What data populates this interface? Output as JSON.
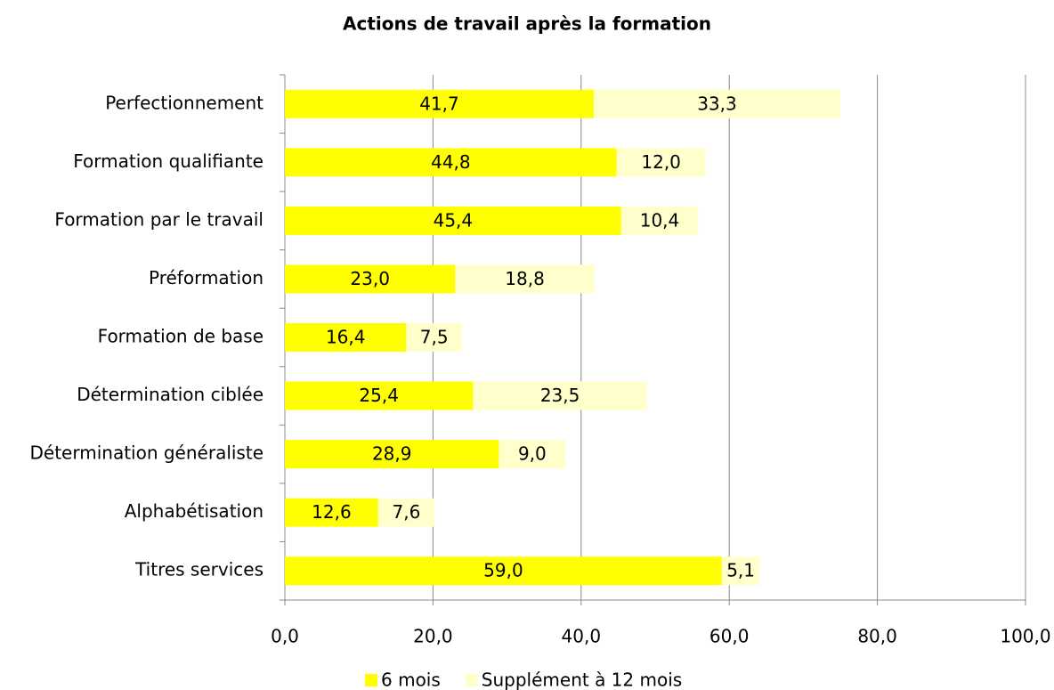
{
  "chart_data": {
    "type": "barh_stacked",
    "title": "Actions de travail après la formation",
    "categories": [
      "Perfectionnement",
      "Formation qualifiante",
      "Formation par le travail",
      "Préformation",
      "Formation de base",
      "Détermination ciblée",
      "Détermination généraliste",
      "Alphabétisation",
      "Titres services"
    ],
    "series": [
      {
        "name": "6 mois",
        "color": "#ffff00",
        "values": [
          41.7,
          44.8,
          45.4,
          23.0,
          16.4,
          25.4,
          28.9,
          12.6,
          59.0
        ],
        "value_labels": [
          "41,7",
          "44,8",
          "45,4",
          "23,0",
          "16,4",
          "25,4",
          "28,9",
          "12,6",
          "59,0"
        ]
      },
      {
        "name": "Supplément à 12 mois",
        "color": "#ffffcc",
        "values": [
          33.3,
          12.0,
          10.4,
          18.8,
          7.5,
          23.5,
          9.0,
          7.6,
          5.1
        ],
        "value_labels": [
          "33,3",
          "12,0",
          "10,4",
          "18,8",
          "7,5",
          "23,5",
          "9,0",
          "7,6",
          "5,1"
        ]
      }
    ],
    "xlim": [
      0,
      100
    ],
    "xticks": [
      {
        "value": 0,
        "label": "0,0"
      },
      {
        "value": 20,
        "label": "20,0"
      },
      {
        "value": 40,
        "label": "40,0"
      },
      {
        "value": 60,
        "label": "60,0"
      },
      {
        "value": 80,
        "label": "80,0"
      },
      {
        "value": 100,
        "label": "100,0"
      }
    ],
    "grid": true,
    "legend": "bottom"
  }
}
